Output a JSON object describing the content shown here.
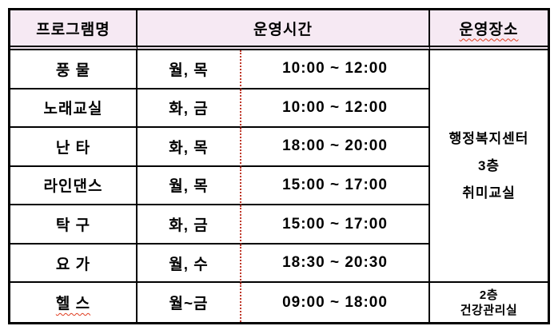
{
  "table": {
    "headers": {
      "program": "프로그램명",
      "time": "운영시간",
      "location": "운영장소"
    },
    "rows": [
      {
        "name": "풍 물",
        "days": "월, 목",
        "time": "10:00 ~ 12:00"
      },
      {
        "name": "노래교실",
        "days": "화, 금",
        "time": "10:00 ~ 12:00"
      },
      {
        "name": "난 타",
        "days": "화, 목",
        "time": "18:00 ~ 20:00"
      },
      {
        "name": "라인댄스",
        "days": "월, 목",
        "time": "15:00 ~ 17:00"
      },
      {
        "name": "탁 구",
        "days": "화, 금",
        "time": "15:00 ~ 17:00"
      },
      {
        "name": "요 가",
        "days": "월, 수",
        "time": "18:30 ~ 20:30"
      },
      {
        "name": "헬 스",
        "days": "월~금",
        "time": "09:00 ~ 18:00"
      }
    ],
    "location_main": {
      "line1": "행정복지센터",
      "line2": "3층",
      "line3": "취미교실"
    },
    "location_last": {
      "line1": "2층",
      "line2": "건강관리실"
    }
  },
  "colors": {
    "header_bg": "#f6e9f3",
    "border": "#000000",
    "dotted_divider": "#c0392b",
    "squiggle": "#e03c1f"
  }
}
